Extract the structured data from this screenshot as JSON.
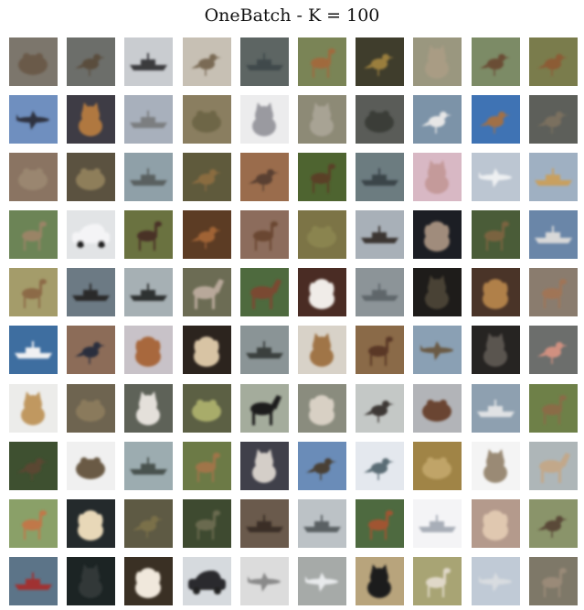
{
  "title": "OneBatch - K = 100",
  "grid": {
    "rows": 10,
    "cols": 10
  },
  "images": [
    {
      "subject": "frog",
      "bg": "#7c766c",
      "fg": "#6a5a4a"
    },
    {
      "subject": "bird",
      "bg": "#6c6e6a",
      "fg": "#5a4d3e"
    },
    {
      "subject": "ship",
      "bg": "#c9ccd0",
      "fg": "#3a3a3d"
    },
    {
      "subject": "bird",
      "bg": "#c7c0b4",
      "fg": "#7a6a55"
    },
    {
      "subject": "ship",
      "bg": "#5d6563",
      "fg": "#3f4a4b"
    },
    {
      "subject": "deer",
      "bg": "#7a8456",
      "fg": "#a06a3e"
    },
    {
      "subject": "bird",
      "bg": "#3f3d2c",
      "fg": "#9a7e3c"
    },
    {
      "subject": "cat",
      "bg": "#9a977f",
      "fg": "#a99c84"
    },
    {
      "subject": "bird",
      "bg": "#7c8b66",
      "fg": "#6a4e36"
    },
    {
      "subject": "bird",
      "bg": "#7a7c4c",
      "fg": "#8c5c36"
    },
    {
      "subject": "airplane",
      "bg": "#6f8fbf",
      "fg": "#2d3340"
    },
    {
      "subject": "cat",
      "bg": "#3e3c45",
      "fg": "#b07840"
    },
    {
      "subject": "ship",
      "bg": "#a8b0bc",
      "fg": "#7b7e80"
    },
    {
      "subject": "frog",
      "bg": "#8a7e60",
      "fg": "#6e6646"
    },
    {
      "subject": "cat",
      "bg": "#ececed",
      "fg": "#9a9aa0"
    },
    {
      "subject": "cat",
      "bg": "#8d8a76",
      "fg": "#a8a394"
    },
    {
      "subject": "frog",
      "bg": "#5a5c58",
      "fg": "#3a3c38"
    },
    {
      "subject": "bird",
      "bg": "#7c93a8",
      "fg": "#e6e6e6"
    },
    {
      "subject": "bird",
      "bg": "#3f73b4",
      "fg": "#a07046"
    },
    {
      "subject": "bird",
      "bg": "#5d5f5a",
      "fg": "#7a705e"
    },
    {
      "subject": "frog",
      "bg": "#8a7462",
      "fg": "#9a8670"
    },
    {
      "subject": "frog",
      "bg": "#5b5240",
      "fg": "#8e7e5a"
    },
    {
      "subject": "ship",
      "bg": "#8fa0a8",
      "fg": "#5a6060"
    },
    {
      "subject": "bird",
      "bg": "#5f5a3c",
      "fg": "#8a6c40"
    },
    {
      "subject": "bird",
      "bg": "#9a6c4c",
      "fg": "#5a4030"
    },
    {
      "subject": "deer",
      "bg": "#4e6430",
      "fg": "#5a4028"
    },
    {
      "subject": "ship",
      "bg": "#6c7c80",
      "fg": "#3a4448"
    },
    {
      "subject": "cat",
      "bg": "#d8b8c4",
      "fg": "#c49a9a"
    },
    {
      "subject": "airplane",
      "bg": "#bcc6d2",
      "fg": "#eef0f2"
    },
    {
      "subject": "ship",
      "bg": "#9fb0c2",
      "fg": "#c8a060"
    },
    {
      "subject": "deer",
      "bg": "#6c8456",
      "fg": "#9a8466"
    },
    {
      "subject": "automobile",
      "bg": "#e2e4e6",
      "fg": "#f4f4f6"
    },
    {
      "subject": "deer",
      "bg": "#6a7240",
      "fg": "#4a3228"
    },
    {
      "subject": "bird",
      "bg": "#5c3c24",
      "fg": "#a06436"
    },
    {
      "subject": "deer",
      "bg": "#8c6c5c",
      "fg": "#6a4630"
    },
    {
      "subject": "frog",
      "bg": "#7c7446",
      "fg": "#8a8450"
    },
    {
      "subject": "ship",
      "bg": "#a8b0b8",
      "fg": "#3a3430"
    },
    {
      "subject": "dog",
      "bg": "#1c1e24",
      "fg": "#a08c7c"
    },
    {
      "subject": "deer",
      "bg": "#4a5c38",
      "fg": "#7a6440"
    },
    {
      "subject": "ship",
      "bg": "#6a86a8",
      "fg": "#d8d8d8"
    },
    {
      "subject": "deer",
      "bg": "#a49c6a",
      "fg": "#8c6a46"
    },
    {
      "subject": "ship",
      "bg": "#6c7a84",
      "fg": "#2a2a2c"
    },
    {
      "subject": "ship",
      "bg": "#a6b0b4",
      "fg": "#2e3230"
    },
    {
      "subject": "horse",
      "bg": "#6c6c54",
      "fg": "#b8a89a"
    },
    {
      "subject": "horse",
      "bg": "#4e6a3e",
      "fg": "#7a4830"
    },
    {
      "subject": "dog",
      "bg": "#4a2c24",
      "fg": "#f0ece8"
    },
    {
      "subject": "ship",
      "bg": "#8c9498",
      "fg": "#5e666a"
    },
    {
      "subject": "cat",
      "bg": "#1e1c1a",
      "fg": "#4a4234"
    },
    {
      "subject": "dog",
      "bg": "#4a3428",
      "fg": "#b08048"
    },
    {
      "subject": "deer",
      "bg": "#8a7c6e",
      "fg": "#a07456"
    },
    {
      "subject": "ship",
      "bg": "#3e6ea0",
      "fg": "#f0f0f2"
    },
    {
      "subject": "bird",
      "bg": "#8c6c58",
      "fg": "#2a2e3c"
    },
    {
      "subject": "dog",
      "bg": "#c8c2c8",
      "fg": "#a8683c"
    },
    {
      "subject": "dog",
      "bg": "#2c241e",
      "fg": "#d8c4a4"
    },
    {
      "subject": "ship",
      "bg": "#8a9496",
      "fg": "#3a403e"
    },
    {
      "subject": "cat",
      "bg": "#d8d2c8",
      "fg": "#a07446"
    },
    {
      "subject": "deer",
      "bg": "#8a6a48",
      "fg": "#5a3826"
    },
    {
      "subject": "airplane",
      "bg": "#8aa0b4",
      "fg": "#6a5a44"
    },
    {
      "subject": "cat",
      "bg": "#262422",
      "fg": "#5a5450"
    },
    {
      "subject": "bird",
      "bg": "#6c6e6c",
      "fg": "#d09080"
    },
    {
      "subject": "cat",
      "bg": "#ececea",
      "fg": "#c09860"
    },
    {
      "subject": "frog",
      "bg": "#6e6450",
      "fg": "#8a7a5c"
    },
    {
      "subject": "cat",
      "bg": "#5e6258",
      "fg": "#e4e0da"
    },
    {
      "subject": "frog",
      "bg": "#5c6044",
      "fg": "#a8ac6a"
    },
    {
      "subject": "horse",
      "bg": "#a4ac9c",
      "fg": "#1e1c1c"
    },
    {
      "subject": "dog",
      "bg": "#8a8c7e",
      "fg": "#d8d0c4"
    },
    {
      "subject": "bird",
      "bg": "#c4c8c6",
      "fg": "#3c3834"
    },
    {
      "subject": "frog",
      "bg": "#b2b4b8",
      "fg": "#6a4430"
    },
    {
      "subject": "ship",
      "bg": "#8ea0b0",
      "fg": "#e0e2e4"
    },
    {
      "subject": "deer",
      "bg": "#6e8048",
      "fg": "#8a6c46"
    },
    {
      "subject": "bird",
      "bg": "#3e5030",
      "fg": "#5a4630"
    },
    {
      "subject": "frog",
      "bg": "#f0f0f0",
      "fg": "#6a5a44"
    },
    {
      "subject": "ship",
      "bg": "#9cacb0",
      "fg": "#4a5250"
    },
    {
      "subject": "deer",
      "bg": "#6c7a46",
      "fg": "#a07448"
    },
    {
      "subject": "cat",
      "bg": "#40404a",
      "fg": "#d4cec8"
    },
    {
      "subject": "bird",
      "bg": "#6a8cb8",
      "fg": "#4a4036"
    },
    {
      "subject": "bird",
      "bg": "#e4e8ee",
      "fg": "#5a6c74"
    },
    {
      "subject": "frog",
      "bg": "#a08446",
      "fg": "#c0a468"
    },
    {
      "subject": "cat",
      "bg": "#f4f4f4",
      "fg": "#9a8a74"
    },
    {
      "subject": "horse",
      "bg": "#aeb6b8",
      "fg": "#c2a88a"
    },
    {
      "subject": "deer",
      "bg": "#8aa068",
      "fg": "#c07848"
    },
    {
      "subject": "dog",
      "bg": "#242a2c",
      "fg": "#e8d8b8"
    },
    {
      "subject": "bird",
      "bg": "#5e5a44",
      "fg": "#7a7048"
    },
    {
      "subject": "deer",
      "bg": "#3e4a30",
      "fg": "#6a6a50"
    },
    {
      "subject": "ship",
      "bg": "#6a5a4c",
      "fg": "#3a2e26"
    },
    {
      "subject": "ship",
      "bg": "#bcc2c6",
      "fg": "#5a6064"
    },
    {
      "subject": "deer",
      "bg": "#4e6a40",
      "fg": "#a05430"
    },
    {
      "subject": "ship",
      "bg": "#f4f4f6",
      "fg": "#a8aeb8"
    },
    {
      "subject": "dog",
      "bg": "#b49a8c",
      "fg": "#e0c8b0"
    },
    {
      "subject": "bird",
      "bg": "#8a946a",
      "fg": "#5a4838"
    },
    {
      "subject": "ship",
      "bg": "#5c7488",
      "fg": "#a03030"
    },
    {
      "subject": "cat",
      "bg": "#1c2424",
      "fg": "#303838"
    },
    {
      "subject": "dog",
      "bg": "#3a3024",
      "fg": "#f0e8dc"
    },
    {
      "subject": "automobile",
      "bg": "#d6dade",
      "fg": "#2a2c2e"
    },
    {
      "subject": "airplane",
      "bg": "#dcdcdc",
      "fg": "#8a8a8a"
    },
    {
      "subject": "airplane",
      "bg": "#a6aaa8",
      "fg": "#e8eaec"
    },
    {
      "subject": "cat",
      "bg": "#b8a47c",
      "fg": "#1c1c1c"
    },
    {
      "subject": "deer",
      "bg": "#a8a474",
      "fg": "#e0d8c8"
    },
    {
      "subject": "airplane",
      "bg": "#c0cad6",
      "fg": "#d8dce0"
    },
    {
      "subject": "deer",
      "bg": "#7e7868",
      "fg": "#9a8a78"
    }
  ]
}
